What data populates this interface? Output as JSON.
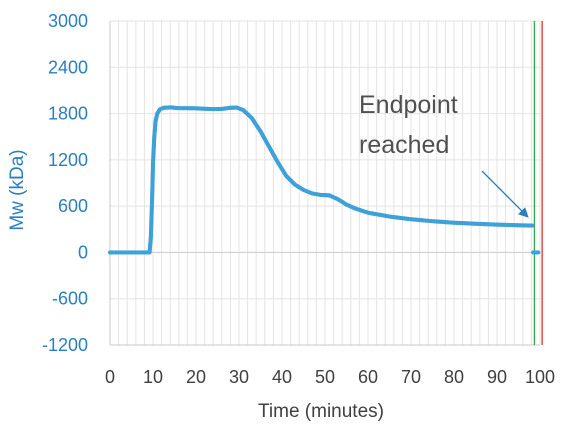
{
  "chart_data": {
    "type": "scatter",
    "title": "",
    "xlabel": "Time (minutes)",
    "ylabel": "Mw (kDa)",
    "xlim": [
      0,
      100
    ],
    "ylim": [
      -1200,
      3000
    ],
    "xticks": [
      0,
      10,
      20,
      30,
      40,
      50,
      60,
      70,
      80,
      90,
      100
    ],
    "yticks": [
      -1200,
      -600,
      0,
      600,
      1200,
      1800,
      2400,
      3000
    ],
    "xtick_labels": [
      "0",
      "10",
      "20",
      "30",
      "40",
      "50",
      "60",
      "70",
      "80",
      "90",
      "100"
    ],
    "ytick_labels": [
      "-1200",
      "-600",
      "0",
      "600",
      "1200",
      "1800",
      "2400",
      "3000"
    ],
    "grid": true,
    "legend": "none",
    "series": [
      {
        "color": "#3fa1d8",
        "points": [
          [
            0,
            0
          ],
          [
            5,
            0
          ],
          [
            9.2,
            0
          ],
          [
            9.5,
            200
          ],
          [
            9.8,
            700
          ],
          [
            10,
            1150
          ],
          [
            10.3,
            1500
          ],
          [
            10.6,
            1700
          ],
          [
            11,
            1800
          ],
          [
            11.6,
            1855
          ],
          [
            12.5,
            1875
          ],
          [
            14,
            1880
          ],
          [
            16,
            1870
          ],
          [
            18,
            1870
          ],
          [
            20,
            1868
          ],
          [
            22,
            1862
          ],
          [
            24,
            1858
          ],
          [
            26,
            1860
          ],
          [
            28,
            1875
          ],
          [
            29.5,
            1878
          ],
          [
            31,
            1845
          ],
          [
            33,
            1740
          ],
          [
            35,
            1570
          ],
          [
            37,
            1370
          ],
          [
            39,
            1170
          ],
          [
            41,
            990
          ],
          [
            43,
            880
          ],
          [
            45,
            810
          ],
          [
            47,
            765
          ],
          [
            49,
            745
          ],
          [
            51,
            740
          ],
          [
            53,
            690
          ],
          [
            55,
            620
          ],
          [
            57,
            570
          ],
          [
            60,
            515
          ],
          [
            65,
            465
          ],
          [
            70,
            430
          ],
          [
            75,
            405
          ],
          [
            80,
            385
          ],
          [
            85,
            372
          ],
          [
            90,
            360
          ],
          [
            95,
            352
          ],
          [
            98.2,
            348
          ]
        ],
        "tail_points": [
          [
            98.4,
            0
          ],
          [
            99.6,
            0
          ]
        ]
      }
    ],
    "vlines": [
      {
        "x": 98.7,
        "color": "#2eaa4a"
      },
      {
        "x": 100.5,
        "color": "#d8352a"
      }
    ],
    "annotations": [
      {
        "text_lines": [
          "Endpoint",
          "reached"
        ],
        "arrow_to": [
          97.5,
          390
        ]
      }
    ],
    "colors": {
      "tick_label": "#2a7fc1",
      "axis_title_y": "#2a7fc1",
      "axis_title_x": "#404040",
      "annotation_text": "#505050",
      "arrow": "#2a7fc1",
      "grid": "#e3e3e3",
      "axis": "#c8c8c8"
    }
  }
}
